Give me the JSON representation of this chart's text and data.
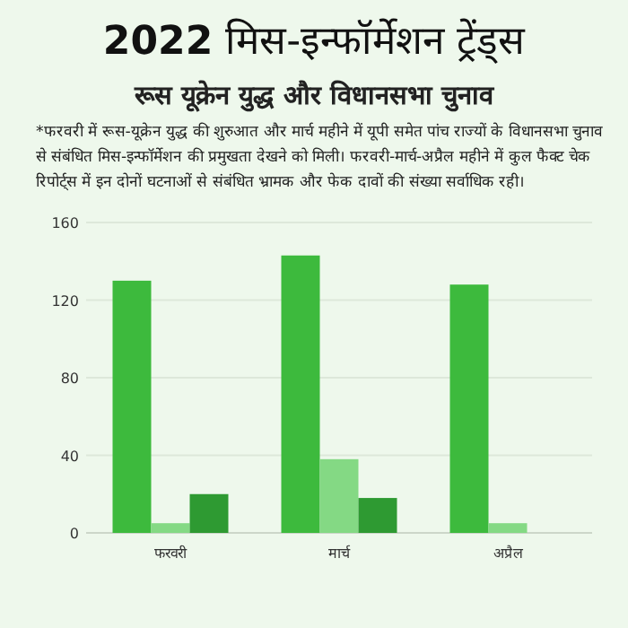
{
  "chart_data": {
    "type": "bar",
    "title": "**2022** मिस-इन्फॉर्मेशन ट्रेंड्स",
    "subtitle": "रूस यूक्रेन युद्ध और विधानसभा चुनाव",
    "annotations": [
      "*फरवरी में रूस-यूक्रेन युद्ध की शुरुआत और मार्च महीने में यूपी समेत पांच राज्यों के विधानसभा चुनाव से संबंधित मिस-इन्फॉर्मेशन की प्रमुखता देखने को मिली। फरवरी-मार्च-अप्रैल महीने में कुल फैक्ट चेक रिपोर्ट्स में इन दोनों घटनाओं से संबंधित भ्रामक और फेक दावों की संख्या सर्वाधिक रही।"
    ],
    "categories": [
      "फरवरी",
      "मार्च",
      "अप्रैल"
    ],
    "series": [
      {
        "color": "#3dba3d",
        "values": [
          130,
          143,
          128
        ]
      },
      {
        "color": "#84d984",
        "values": [
          5,
          38,
          5
        ]
      },
      {
        "color": "#2e9a32",
        "values": [
          20,
          18,
          null
        ]
      }
    ],
    "ylim": [
      0,
      160
    ],
    "yticks": [
      0,
      40,
      80,
      120,
      160
    ],
    "grid": "y"
  }
}
